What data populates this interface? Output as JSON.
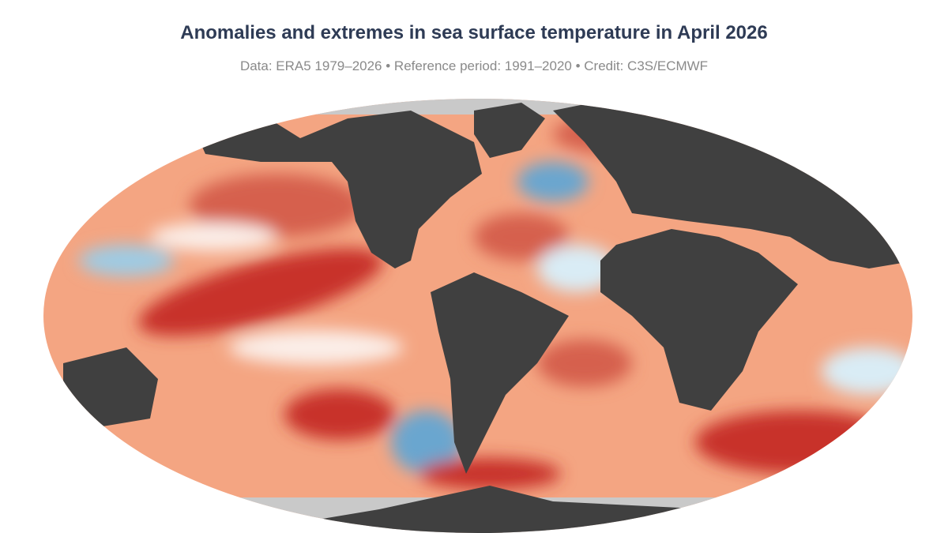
{
  "title": "Anomalies and extremes in sea surface temperature in April 2026",
  "subtitle": "Data: ERA5 1979–2026 • Reference period: 1991–2020 • Credit: C3S/ECMWF"
}
